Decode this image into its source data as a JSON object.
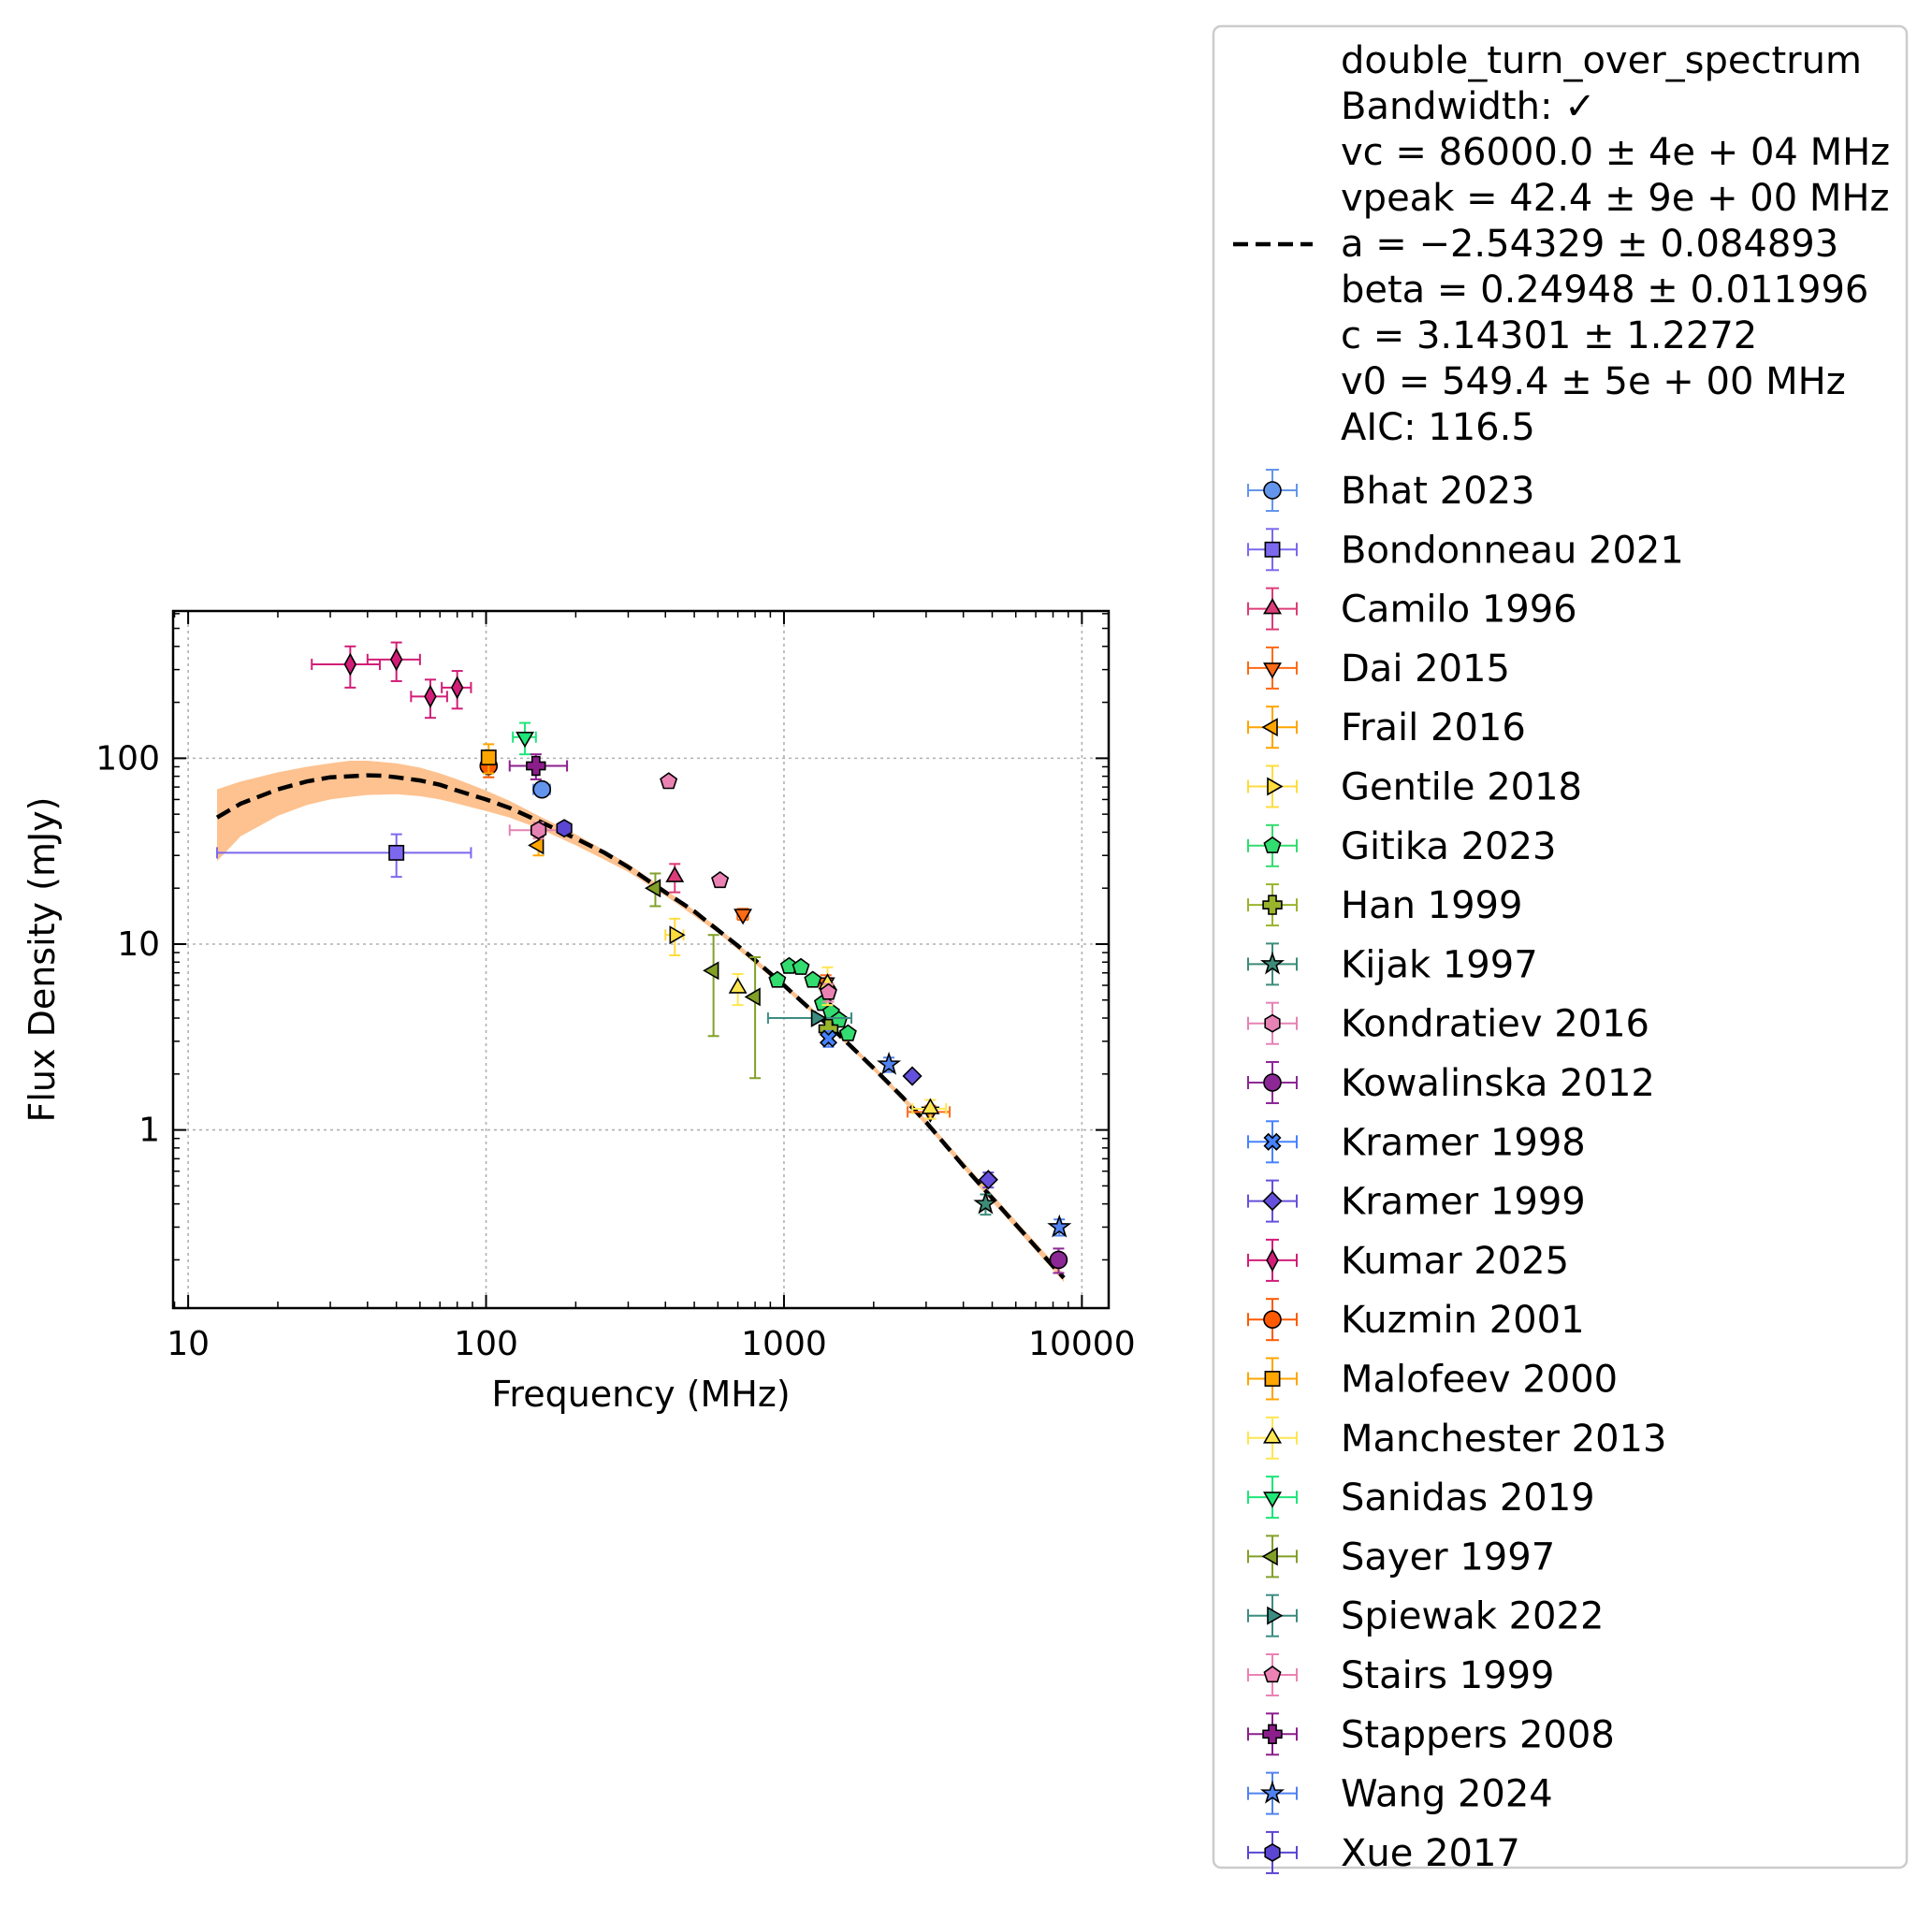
{
  "chart_data": {
    "type": "scatter",
    "xlabel": "Frequency (MHz)",
    "ylabel": "Flux Density (mJy)",
    "xscale": "log",
    "yscale": "log",
    "xlim": [
      8.9,
      12300
    ],
    "ylim": [
      0.11,
      620
    ],
    "x_ticks": [
      10,
      100,
      1000,
      10000
    ],
    "x_tick_labels": [
      "10",
      "100",
      "1000",
      "10000"
    ],
    "y_ticks": [
      1,
      10,
      100
    ],
    "y_tick_labels": [
      "1",
      "10",
      "100"
    ],
    "grid": true,
    "legend_position": "outside-right",
    "fit": {
      "name": "double_turn_over_spectrum",
      "label_lines": [
        "double_turn_over_spectrum",
        "Bandwidth: ✓",
        "vc = 86000.0 ± 4e + 04 MHz",
        "vpeak = 42.4 ± 9e + 00 MHz",
        "a = −2.54329 ± 0.084893",
        "beta = 0.24948 ± 0.011996",
        "c = 3.14301 ± 1.2272",
        "v0 = 549.4 ± 5e + 00 MHz",
        "AIC: 116.5"
      ],
      "line_color": "#000000",
      "band_color": "#fdbf8a",
      "curve": [
        [
          12.5,
          48
        ],
        [
          15,
          57
        ],
        [
          20,
          68
        ],
        [
          25,
          75
        ],
        [
          30,
          79
        ],
        [
          35,
          80
        ],
        [
          40,
          81
        ],
        [
          45,
          80.5
        ],
        [
          50,
          79
        ],
        [
          60,
          76
        ],
        [
          70,
          72
        ],
        [
          80,
          67
        ],
        [
          100,
          60
        ],
        [
          120,
          54
        ],
        [
          150,
          46
        ],
        [
          200,
          37
        ],
        [
          250,
          31
        ],
        [
          300,
          26
        ],
        [
          400,
          19
        ],
        [
          500,
          15
        ],
        [
          600,
          11.9
        ],
        [
          700,
          9.8
        ],
        [
          800,
          8.2
        ],
        [
          1000,
          6.0
        ],
        [
          1200,
          4.6
        ],
        [
          1500,
          3.35
        ],
        [
          2000,
          2.15
        ],
        [
          2500,
          1.5
        ],
        [
          3000,
          1.1
        ],
        [
          4000,
          0.64
        ],
        [
          5000,
          0.43
        ],
        [
          6000,
          0.31
        ],
        [
          7000,
          0.235
        ],
        [
          8000,
          0.185
        ],
        [
          8700,
          0.16
        ]
      ],
      "band_upper": [
        [
          12.5,
          68
        ],
        [
          15,
          75
        ],
        [
          20,
          84
        ],
        [
          25,
          90
        ],
        [
          30,
          94
        ],
        [
          35,
          97
        ],
        [
          40,
          97
        ],
        [
          50,
          94
        ],
        [
          60,
          89
        ],
        [
          70,
          83
        ],
        [
          80,
          77
        ],
        [
          100,
          67
        ],
        [
          120,
          59
        ],
        [
          150,
          49
        ],
        [
          200,
          39
        ],
        [
          300,
          27
        ],
        [
          400,
          19.7
        ],
        [
          600,
          12.3
        ],
        [
          1000,
          6.2
        ],
        [
          1500,
          3.45
        ],
        [
          2000,
          2.22
        ],
        [
          3000,
          1.14
        ],
        [
          5000,
          0.45
        ],
        [
          8700,
          0.168
        ]
      ],
      "band_lower": [
        [
          12.5,
          28
        ],
        [
          15,
          38
        ],
        [
          20,
          49
        ],
        [
          25,
          56
        ],
        [
          30,
          60
        ],
        [
          35,
          62
        ],
        [
          40,
          63.5
        ],
        [
          50,
          64
        ],
        [
          60,
          62.5
        ],
        [
          70,
          60
        ],
        [
          80,
          57
        ],
        [
          100,
          52
        ],
        [
          120,
          48
        ],
        [
          150,
          42
        ],
        [
          200,
          34
        ],
        [
          300,
          24.5
        ],
        [
          400,
          18.2
        ],
        [
          600,
          11.5
        ],
        [
          1000,
          5.8
        ],
        [
          1500,
          3.25
        ],
        [
          2000,
          2.08
        ],
        [
          3000,
          1.06
        ],
        [
          5000,
          0.41
        ],
        [
          8700,
          0.152
        ]
      ]
    },
    "series": [
      {
        "name": "Bhat 2023",
        "marker": "circle",
        "color": "#6495ed",
        "points": [
          {
            "x": 154,
            "y": 68,
            "yerr": [
              5,
              5
            ],
            "xerr": [
              10,
              10
            ]
          }
        ]
      },
      {
        "name": "Bondonneau 2021",
        "marker": "square",
        "color": "#7b68ee",
        "points": [
          {
            "x": 50,
            "y": 31,
            "yerr": [
              8,
              8
            ],
            "xerr": [
              37.5,
              39
            ]
          }
        ]
      },
      {
        "name": "Camilo 1996",
        "marker": "triangle-up",
        "color": "#dc3c78",
        "points": [
          {
            "x": 430,
            "y": 23,
            "yerr": [
              4,
              4
            ]
          }
        ]
      },
      {
        "name": "Dai 2015",
        "marker": "triangle-down",
        "color": "#ff6a14",
        "points": [
          {
            "x": 728,
            "y": 14.5,
            "yerr": [
              1,
              1
            ],
            "xerr": [
              30,
              30
            ]
          },
          {
            "x": 1382,
            "y": 6.2,
            "yerr": [
              0.6,
              0.6
            ],
            "xerr": [
              60,
              60
            ]
          },
          {
            "x": 3100,
            "y": 1.25,
            "yerr": [
              0.1,
              0.1
            ],
            "xerr": [
              500,
              500
            ]
          }
        ]
      },
      {
        "name": "Frail 2016",
        "marker": "triangle-left",
        "color": "#ffa500",
        "points": [
          {
            "x": 150,
            "y": 34,
            "yerr": [
              4,
              4
            ]
          }
        ]
      },
      {
        "name": "Gentile 2018",
        "marker": "triangle-right",
        "color": "#ffdc3c",
        "points": [
          {
            "x": 430,
            "y": 11.2,
            "yerr": [
              2.5,
              2.5
            ],
            "xerr": [
              30,
              30
            ]
          }
        ]
      },
      {
        "name": "Gitika 2023",
        "marker": "pentagon",
        "color": "#32dc6e",
        "points": [
          {
            "x": 950,
            "y": 6.4
          },
          {
            "x": 1040,
            "y": 7.6
          },
          {
            "x": 1140,
            "y": 7.5
          },
          {
            "x": 1250,
            "y": 6.4
          },
          {
            "x": 1350,
            "y": 4.8
          },
          {
            "x": 1440,
            "y": 4.3
          },
          {
            "x": 1530,
            "y": 3.9
          },
          {
            "x": 1640,
            "y": 3.3
          }
        ]
      },
      {
        "name": "Han 1999",
        "marker": "plus",
        "color": "#9ab42c",
        "points": [
          {
            "x": 1410,
            "y": 3.5,
            "yerr": [
              0.5,
              0.5
            ]
          }
        ]
      },
      {
        "name": "Kijak 1997",
        "marker": "star",
        "color": "#3c8c78",
        "points": [
          {
            "x": 4750,
            "y": 0.4,
            "yerr": [
              0.05,
              0.05
            ]
          }
        ]
      },
      {
        "name": "Kondratiev 2016",
        "marker": "hexagon",
        "color": "#e682b4",
        "points": [
          {
            "x": 150,
            "y": 41,
            "yerr": [
              4,
              4
            ],
            "xerr": [
              30,
              30
            ]
          }
        ]
      },
      {
        "name": "Kowalinska 2012",
        "marker": "circle",
        "color": "#8c2896",
        "points": [
          {
            "x": 8350,
            "y": 0.2,
            "yerr": [
              0.03,
              0.03
            ]
          }
        ]
      },
      {
        "name": "Kramer 1998",
        "marker": "x",
        "color": "#4682ff",
        "points": [
          {
            "x": 1410,
            "y": 3.1,
            "yerr": [
              0.3,
              0.3
            ]
          }
        ]
      },
      {
        "name": "Kramer 1999",
        "marker": "diamond",
        "color": "#6450dc",
        "points": [
          {
            "x": 2695,
            "y": 1.95
          },
          {
            "x": 4850,
            "y": 0.54,
            "yerr": [
              0.05,
              0.05
            ]
          }
        ]
      },
      {
        "name": "Kumar 2025",
        "marker": "thin-diamond",
        "color": "#d21e78",
        "points": [
          {
            "x": 35,
            "y": 320,
            "yerr": [
              80,
              80
            ],
            "xerr": [
              9,
              9
            ]
          },
          {
            "x": 50,
            "y": 340,
            "yerr": [
              80,
              80
            ],
            "xerr": [
              10,
              10
            ]
          },
          {
            "x": 65,
            "y": 215,
            "yerr": [
              50,
              50
            ],
            "xerr": [
              9,
              9
            ]
          },
          {
            "x": 80,
            "y": 240,
            "yerr": [
              55,
              55
            ],
            "xerr": [
              9,
              9
            ]
          }
        ]
      },
      {
        "name": "Kuzmin 2001",
        "marker": "circle",
        "color": "#ff5a00",
        "points": [
          {
            "x": 102,
            "y": 91,
            "yerr": [
              12,
              12
            ]
          }
        ]
      },
      {
        "name": "Malofeev 2000",
        "marker": "square",
        "color": "#ffa500",
        "points": [
          {
            "x": 102,
            "y": 101,
            "yerr": [
              18,
              18
            ]
          }
        ]
      },
      {
        "name": "Manchester 2013",
        "marker": "triangle-up",
        "color": "#ffe650",
        "points": [
          {
            "x": 700,
            "y": 5.8,
            "yerr": [
              1.1,
              1.1
            ]
          },
          {
            "x": 1400,
            "y": 6.1,
            "yerr": [
              1.4,
              1.4
            ]
          },
          {
            "x": 3100,
            "y": 1.3,
            "yerr": [
              0.15,
              0.15
            ],
            "xerr": [
              400,
              400
            ]
          }
        ]
      },
      {
        "name": "Sanidas 2019",
        "marker": "triangle-down",
        "color": "#1ee678",
        "points": [
          {
            "x": 135,
            "y": 130,
            "yerr": [
              25,
              25
            ],
            "xerr": [
              12,
              12
            ]
          }
        ]
      },
      {
        "name": "Sayer 1997",
        "marker": "triangle-left",
        "color": "#82a028",
        "points": [
          {
            "x": 370,
            "y": 20,
            "yerr": [
              4,
              4
            ]
          },
          {
            "x": 580,
            "y": 7.2,
            "yerr": [
              4,
              4
            ]
          },
          {
            "x": 800,
            "y": 5.2,
            "yerr": [
              3.3,
              3.3
            ]
          }
        ]
      },
      {
        "name": "Spiewak 2022",
        "marker": "triangle-right",
        "color": "#3c8c82",
        "points": [
          {
            "x": 1284,
            "y": 4.0,
            "xerr": [
              400,
              400
            ]
          }
        ]
      },
      {
        "name": "Stairs 1999",
        "marker": "pentagon",
        "color": "#eb82b4",
        "points": [
          {
            "x": 410,
            "y": 75
          },
          {
            "x": 610,
            "y": 22
          },
          {
            "x": 1410,
            "y": 5.5,
            "yerr": [
              0.6,
              0.6
            ]
          }
        ]
      },
      {
        "name": "Stappers 2008",
        "marker": "plus",
        "color": "#8c1e8c",
        "points": [
          {
            "x": 147,
            "y": 91,
            "yerr": [
              14,
              14
            ],
            "xerr": [
              27,
              40
            ]
          }
        ]
      },
      {
        "name": "Wang 2024",
        "marker": "star",
        "color": "#5082f0",
        "points": [
          {
            "x": 2250,
            "y": 2.25,
            "yerr": [
              0.2,
              0.2
            ]
          },
          {
            "x": 8400,
            "y": 0.3,
            "yerr": [
              0.03,
              0.03
            ]
          }
        ]
      },
      {
        "name": "Xue 2017",
        "marker": "hexagon",
        "color": "#5a46d2",
        "points": [
          {
            "x": 183,
            "y": 42
          }
        ]
      }
    ]
  }
}
